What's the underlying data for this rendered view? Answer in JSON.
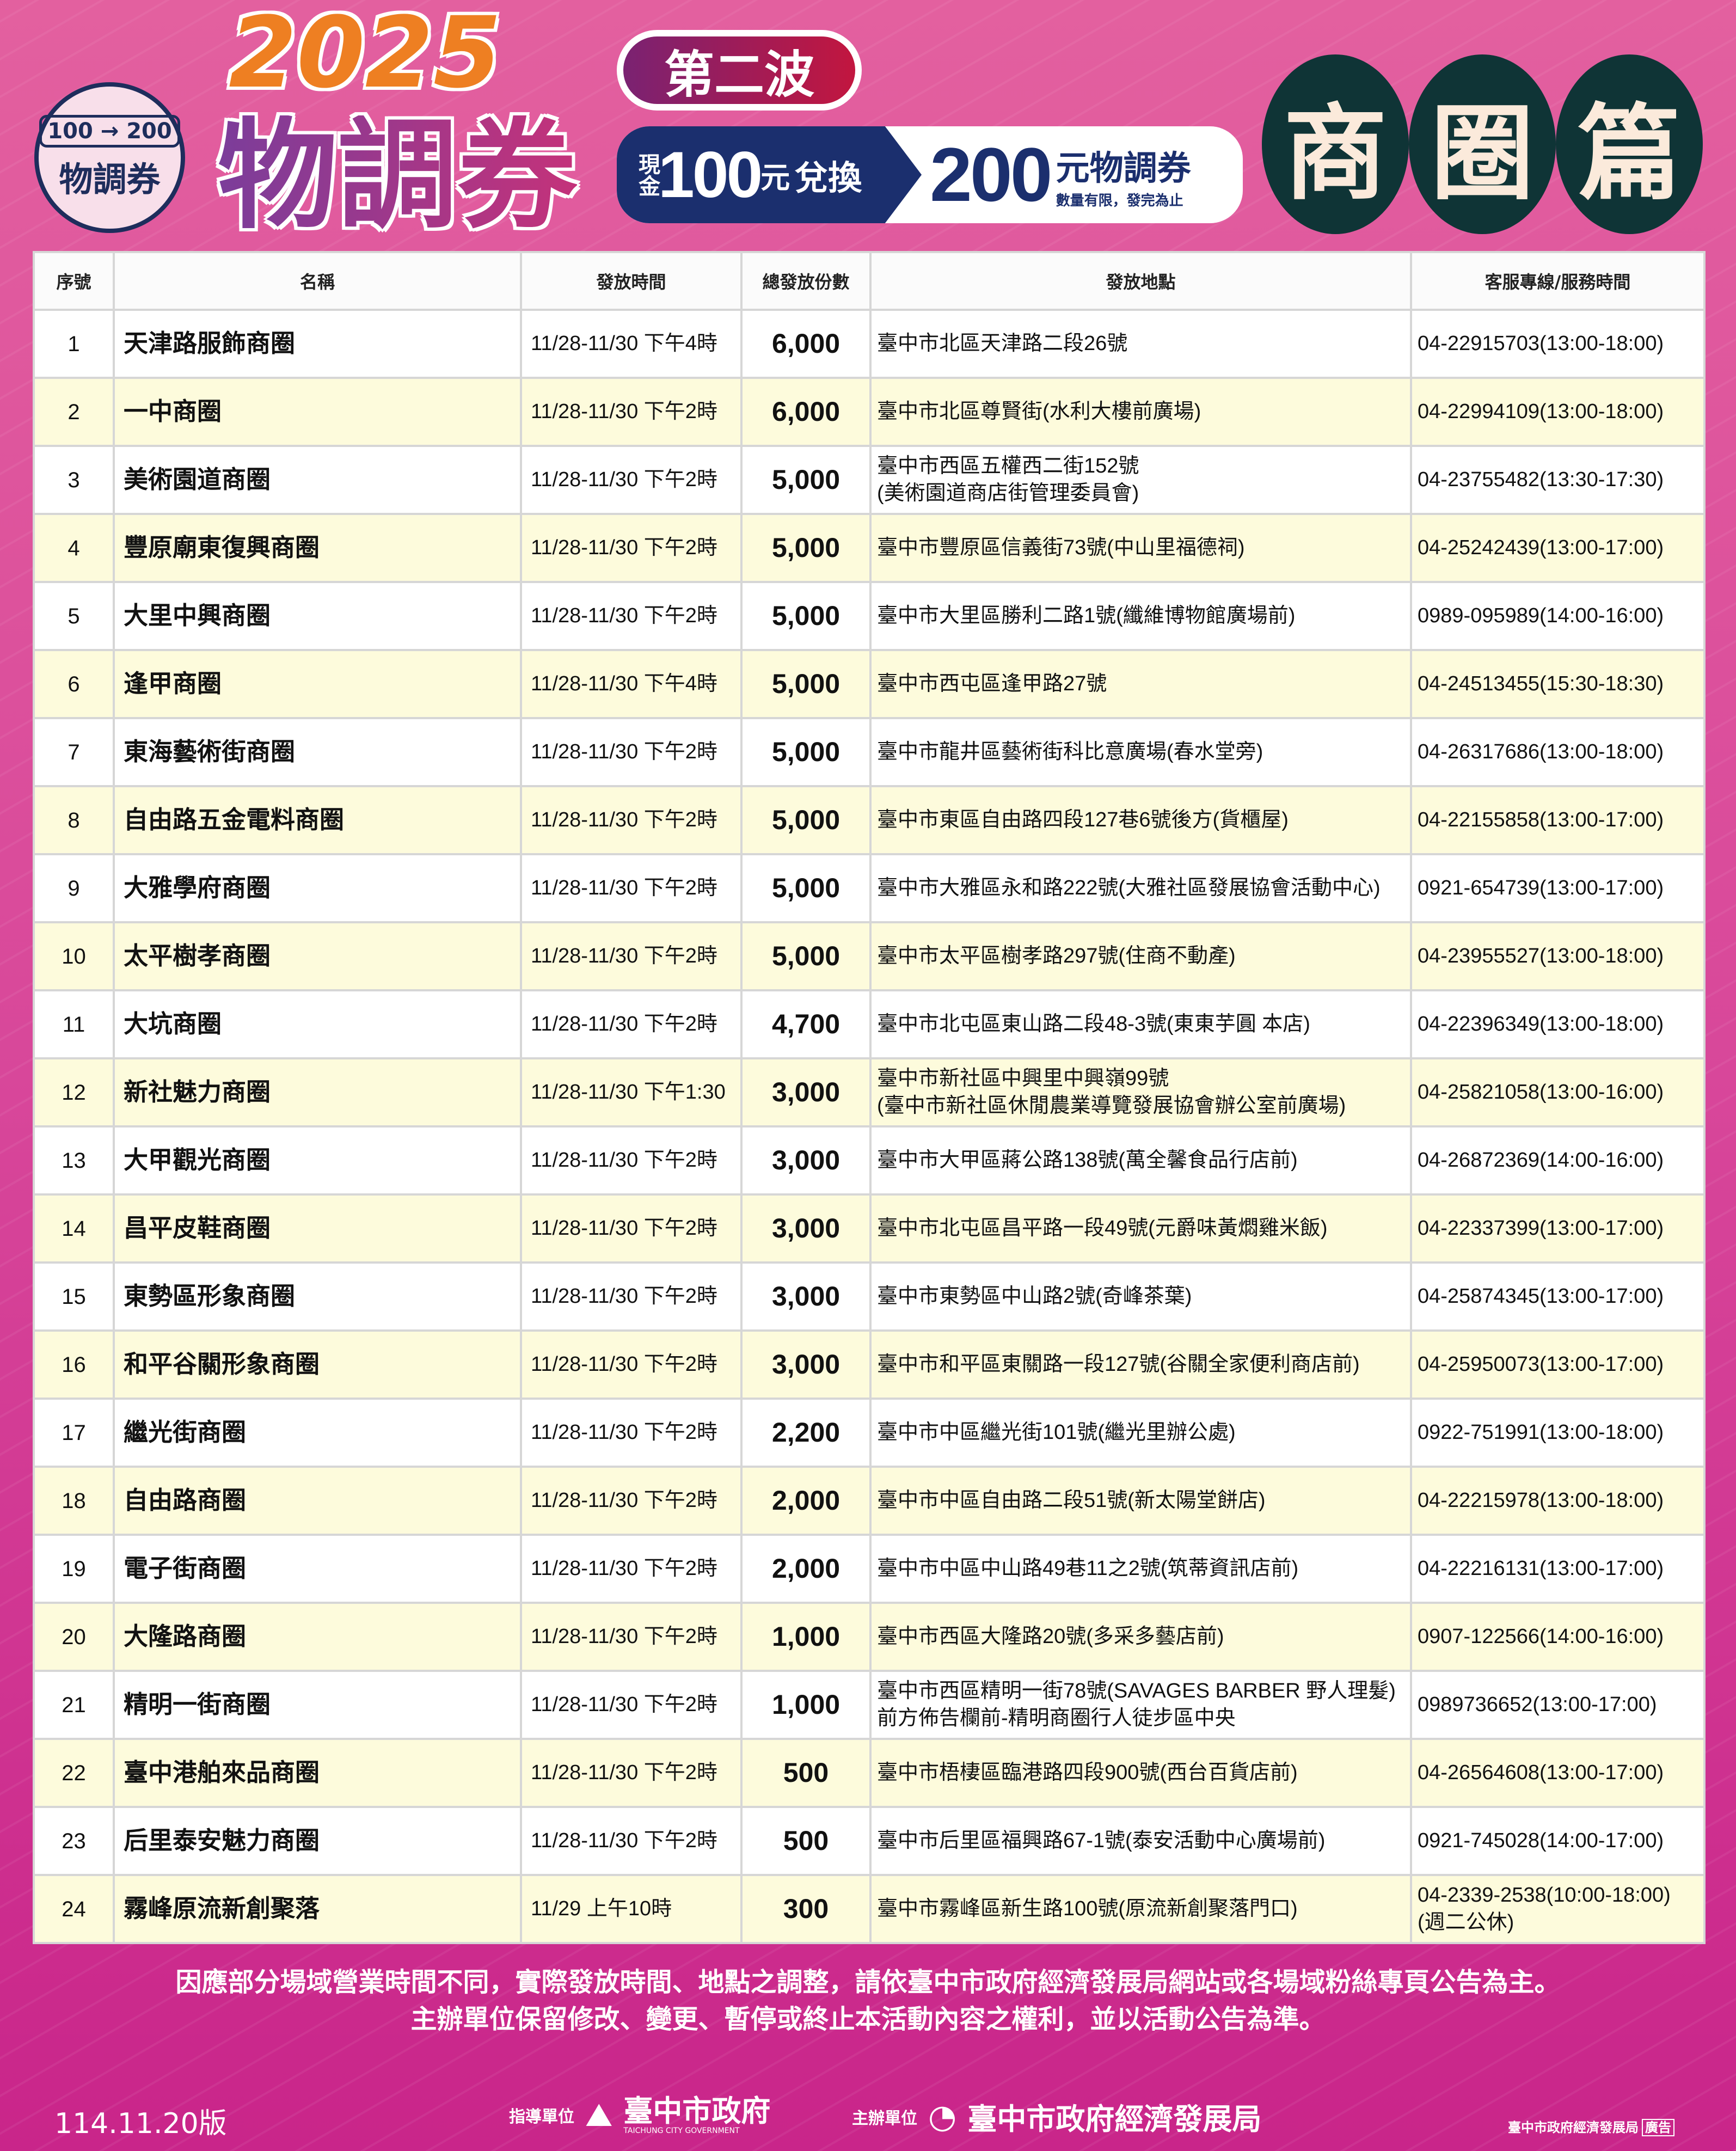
{
  "header": {
    "logo": {
      "from": "100",
      "to": "200",
      "text": "物調券"
    },
    "year": "2025",
    "title": "物調券",
    "wave": "第二波",
    "banner": {
      "cash": "現金",
      "amount": "100",
      "yuan": "元",
      "exchange": "兌換",
      "value": "200",
      "voucher": "元物調券",
      "limit": "數量有限，發完為止"
    },
    "district": [
      "商",
      "圈",
      "篇"
    ]
  },
  "colors": {
    "background": "#d8479a",
    "header_orange": "#ee7f22",
    "banner_navy": "#1b2f6e",
    "district_dark": "#0f3436",
    "row_alt": "#fdfbdc"
  },
  "table": {
    "columns": [
      "序號",
      "名稱",
      "發放時間",
      "總發放份數",
      "發放地點",
      "客服專線/服務時間"
    ],
    "rows": [
      [
        "1",
        "天津路服飾商圈",
        "11/28-11/30 下午4時",
        "6,000",
        "臺中市北區天津路二段26號",
        "04-22915703(13:00-18:00)"
      ],
      [
        "2",
        "一中商圈",
        "11/28-11/30 下午2時",
        "6,000",
        "臺中市北區尊賢街(水利大樓前廣場)",
        "04-22994109(13:00-18:00)"
      ],
      [
        "3",
        "美術園道商圈",
        "11/28-11/30 下午2時",
        "5,000",
        "臺中市西區五權西二街152號\n(美術園道商店街管理委員會)",
        "04-23755482(13:30-17:30)"
      ],
      [
        "4",
        "豐原廟東復興商圈",
        "11/28-11/30 下午2時",
        "5,000",
        "臺中市豐原區信義街73號(中山里福德祠)",
        "04-25242439(13:00-17:00)"
      ],
      [
        "5",
        "大里中興商圈",
        "11/28-11/30 下午2時",
        "5,000",
        "臺中市大里區勝利二路1號(纖維博物館廣場前)",
        "0989-095989(14:00-16:00)"
      ],
      [
        "6",
        "逢甲商圈",
        "11/28-11/30 下午4時",
        "5,000",
        "臺中市西屯區逢甲路27號",
        "04-24513455(15:30-18:30)"
      ],
      [
        "7",
        "東海藝術街商圈",
        "11/28-11/30 下午2時",
        "5,000",
        "臺中市龍井區藝術街科比意廣場(春水堂旁)",
        "04-26317686(13:00-18:00)"
      ],
      [
        "8",
        "自由路五金電料商圈",
        "11/28-11/30 下午2時",
        "5,000",
        "臺中市東區自由路四段127巷6號後方(貨櫃屋)",
        "04-22155858(13:00-17:00)"
      ],
      [
        "9",
        "大雅學府商圈",
        "11/28-11/30 下午2時",
        "5,000",
        "臺中市大雅區永和路222號(大雅社區發展協會活動中心)",
        "0921-654739(13:00-17:00)"
      ],
      [
        "10",
        "太平樹孝商圈",
        "11/28-11/30 下午2時",
        "5,000",
        "臺中市太平區樹孝路297號(住商不動產)",
        "04-23955527(13:00-18:00)"
      ],
      [
        "11",
        "大坑商圈",
        "11/28-11/30 下午2時",
        "4,700",
        "臺中市北屯區東山路二段48-3號(東東芋圓 本店)",
        "04-22396349(13:00-18:00)"
      ],
      [
        "12",
        "新社魅力商圈",
        "11/28-11/30 下午1:30",
        "3,000",
        "臺中市新社區中興里中興嶺99號\n(臺中市新社區休閒農業導覽發展協會辦公室前廣場)",
        "04-25821058(13:00-16:00)"
      ],
      [
        "13",
        "大甲觀光商圈",
        "11/28-11/30 下午2時",
        "3,000",
        "臺中市大甲區蔣公路138號(萬全馨食品行店前)",
        "04-26872369(14:00-16:00)"
      ],
      [
        "14",
        "昌平皮鞋商圈",
        "11/28-11/30 下午2時",
        "3,000",
        "臺中市北屯區昌平路一段49號(元爵味黃燜雞米飯)",
        "04-22337399(13:00-17:00)"
      ],
      [
        "15",
        "東勢區形象商圈",
        "11/28-11/30 下午2時",
        "3,000",
        "臺中市東勢區中山路2號(奇峰茶葉)",
        "04-25874345(13:00-17:00)"
      ],
      [
        "16",
        "和平谷關形象商圈",
        "11/28-11/30 下午2時",
        "3,000",
        "臺中市和平區東關路一段127號(谷關全家便利商店前)",
        "04-25950073(13:00-17:00)"
      ],
      [
        "17",
        "繼光街商圈",
        "11/28-11/30 下午2時",
        "2,200",
        "臺中市中區繼光街101號(繼光里辦公處)",
        "0922-751991(13:00-18:00)"
      ],
      [
        "18",
        "自由路商圈",
        "11/28-11/30 下午2時",
        "2,000",
        "臺中市中區自由路二段51號(新太陽堂餅店)",
        "04-22215978(13:00-18:00)"
      ],
      [
        "19",
        "電子街商圈",
        "11/28-11/30 下午2時",
        "2,000",
        "臺中市中區中山路49巷11之2號(筑蒂資訊店前)",
        "04-22216131(13:00-17:00)"
      ],
      [
        "20",
        "大隆路商圈",
        "11/28-11/30 下午2時",
        "1,000",
        "臺中市西區大隆路20號(多采多藝店前)",
        "0907-122566(14:00-16:00)"
      ],
      [
        "21",
        "精明一街商圈",
        "11/28-11/30 下午2時",
        "1,000",
        "臺中市西區精明一街78號(SAVAGES BARBER 野人理髮)\n前方佈告欄前-精明商圈行人徒步區中央",
        "0989736652(13:00-17:00)"
      ],
      [
        "22",
        "臺中港舶來品商圈",
        "11/28-11/30 下午2時",
        "500",
        "臺中市梧棲區臨港路四段900號(西台百貨店前)",
        "04-26564608(13:00-17:00)"
      ],
      [
        "23",
        "后里泰安魅力商圈",
        "11/28-11/30 下午2時",
        "500",
        "臺中市后里區福興路67-1號(泰安活動中心廣場前)",
        "0921-745028(14:00-17:00)"
      ],
      [
        "24",
        "霧峰原流新創聚落",
        "11/29 上午10時",
        "300",
        "臺中市霧峰區新生路100號(原流新創聚落門口)",
        "04-2339-2538(10:00-18:00)\n(週二公休)"
      ]
    ]
  },
  "notes": [
    "因應部分場域營業時間不同，實際發放時間、地點之調整，請依臺中市政府經濟發展局網站或各場域粉絲專頁公告為主。",
    "主辦單位保留修改、變更、暫停或終止本活動內容之權利，並以活動公告為準。"
  ],
  "footer": {
    "version": "114.11.20版",
    "guide_label": "指導單位",
    "guide_org": "臺中市政府",
    "guide_org_en": "TAICHUNG CITY GOVERNMENT",
    "host_label": "主辦單位",
    "host_org": "臺中市政府經濟發展局",
    "ad_org": "臺中市政府經濟發展局",
    "ad_tag": "廣告"
  }
}
